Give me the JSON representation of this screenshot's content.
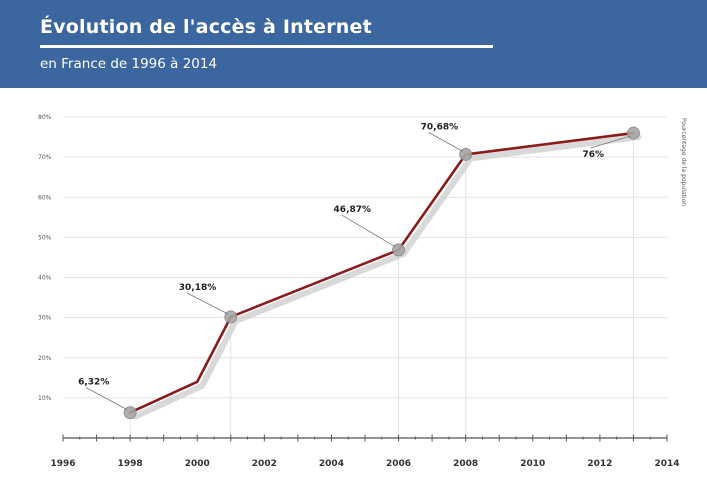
{
  "header": {
    "title": "Évolution de l'accès à Internet",
    "subtitle": "en France de 1996 à 2014"
  },
  "colors": {
    "header_bg": "#3b66a0",
    "line": "#8b1a1a",
    "marker": "#a6a6a6",
    "grid": "#e3e3e3"
  },
  "chart_data": {
    "type": "line",
    "title": "Évolution de l'accès à Internet",
    "subtitle": "en France de 1996 à 2014",
    "ylabel": "Pourcentage de la population",
    "xlim": [
      1996,
      2014
    ],
    "ylim": [
      0,
      80
    ],
    "x_ticks": [
      "1996",
      "1998",
      "2000",
      "2002",
      "2004",
      "2006",
      "2008",
      "2010",
      "2012",
      "2014"
    ],
    "y_ticks": [
      "10%",
      "20%",
      "30%",
      "40%",
      "50%",
      "60%",
      "70%",
      "80%"
    ],
    "grid": true,
    "series": [
      {
        "x": [
          1998,
          2000,
          2001,
          2006,
          2008,
          2013
        ],
        "y": [
          6.32,
          14,
          30.18,
          46.87,
          70.68,
          76
        ]
      }
    ],
    "annotations": [
      {
        "x": 1998,
        "y": 6.32,
        "text": "6,32%"
      },
      {
        "x": 2001,
        "y": 30.18,
        "text": "30,18%"
      },
      {
        "x": 2006,
        "y": 46.87,
        "text": "46,87%"
      },
      {
        "x": 2008,
        "y": 70.68,
        "text": "70,68%"
      },
      {
        "x": 2013,
        "y": 76,
        "text": "76%"
      }
    ]
  }
}
